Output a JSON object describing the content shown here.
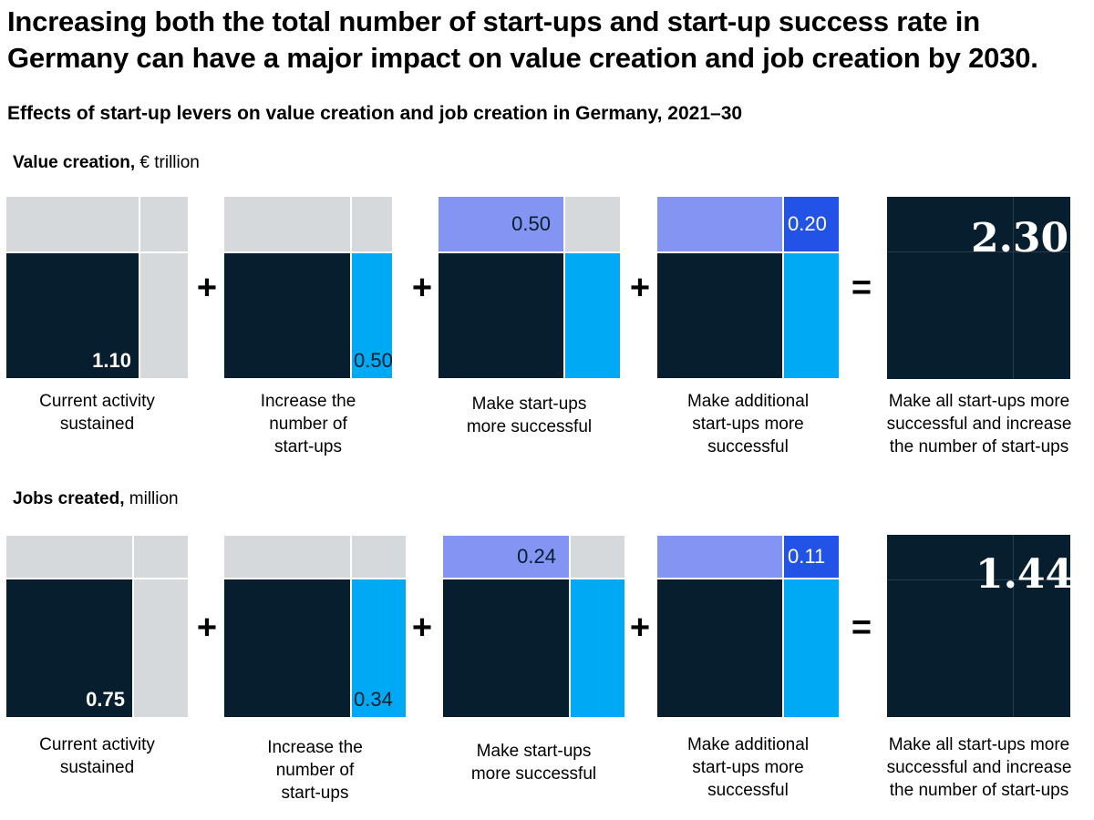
{
  "title": "Increasing both the total number of start-ups and start-up success rate in Germany can have a major impact on value creation and job creation by 2030.",
  "subtitle": "Effects of start-up levers on value creation and job creation in Germany, 2021–30",
  "colors": {
    "base": "#061e2d",
    "increase_number": "#00a9f4",
    "more_successful": "#8494f2",
    "additional_successful": "#2252e6",
    "inactive": "#d6d9dc"
  },
  "operators": {
    "plus": "+",
    "equals": "="
  },
  "chart_data": [
    {
      "type": "table",
      "title": "Value creation,",
      "unit": "€ trillion",
      "levers": [
        {
          "label_lines": [
            "Current activity",
            "sustained"
          ],
          "value": "1.10",
          "highlight": "base"
        },
        {
          "label_lines": [
            "Increase the",
            "number of",
            "start-ups"
          ],
          "value": "0.50",
          "highlight": "increase_number"
        },
        {
          "label_lines": [
            "Make start-ups",
            "more successful"
          ],
          "value": "0.50",
          "highlight": "more_successful"
        },
        {
          "label_lines": [
            "Make additional",
            "start-ups more",
            "successful"
          ],
          "value": "0.20",
          "highlight": "additional_successful"
        }
      ],
      "total": {
        "label_lines": [
          "Make all start-ups more",
          "successful and increase",
          "the number of start-ups"
        ],
        "value": "2.30"
      }
    },
    {
      "type": "table",
      "title": "Jobs created,",
      "unit": "million",
      "levers": [
        {
          "label_lines": [
            "Current activity",
            "sustained"
          ],
          "value": "0.75",
          "highlight": "base"
        },
        {
          "label_lines": [
            "Increase the",
            "number of",
            "start-ups"
          ],
          "value": "0.34",
          "highlight": "increase_number"
        },
        {
          "label_lines": [
            "Make start-ups",
            "more successful"
          ],
          "value": "0.24",
          "highlight": "more_successful"
        },
        {
          "label_lines": [
            "Make additional",
            "start-ups more",
            "successful"
          ],
          "value": "0.11",
          "highlight": "additional_successful"
        }
      ],
      "total": {
        "label_lines": [
          "Make all start-ups more",
          "successful and increase",
          "the number of start-ups"
        ],
        "value": "1.44"
      }
    }
  ]
}
